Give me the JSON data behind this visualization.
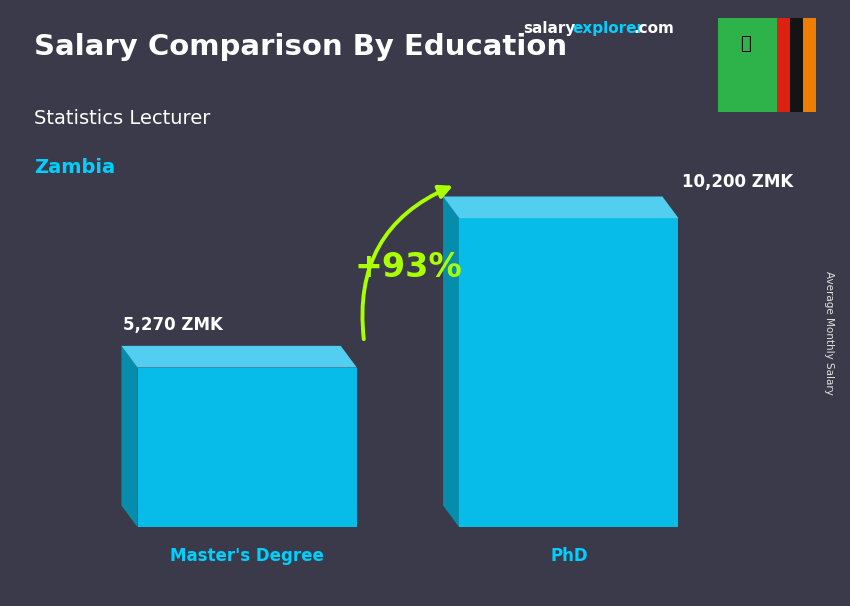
{
  "title": "Salary Comparison By Education",
  "subtitle": "Statistics Lecturer",
  "country": "Zambia",
  "categories": [
    "Master's Degree",
    "PhD"
  ],
  "values": [
    5270,
    10200
  ],
  "value_labels": [
    "5,270 ZMK",
    "10,200 ZMK"
  ],
  "bar_color_face": "#00CFFF",
  "bar_color_left": "#0099BB",
  "bar_color_top": "#55DDFF",
  "pct_change": "+93%",
  "ylabel": "Average Monthly Salary",
  "bg_color": "#3a3a4a",
  "title_color": "#ffffff",
  "subtitle_color": "#ffffff",
  "country_color": "#00CFFF",
  "value_color": "#ffffff",
  "category_color": "#00CFFF",
  "pct_color": "#aaff00",
  "arrow_color": "#aaff00",
  "bar_width": 0.3,
  "bar_positions": [
    0.28,
    0.72
  ],
  "ylim": [
    0,
    13000
  ],
  "flag_green": "#2db34a",
  "flag_red": "#de2010",
  "flag_black": "#141414",
  "flag_orange": "#ef7d00"
}
